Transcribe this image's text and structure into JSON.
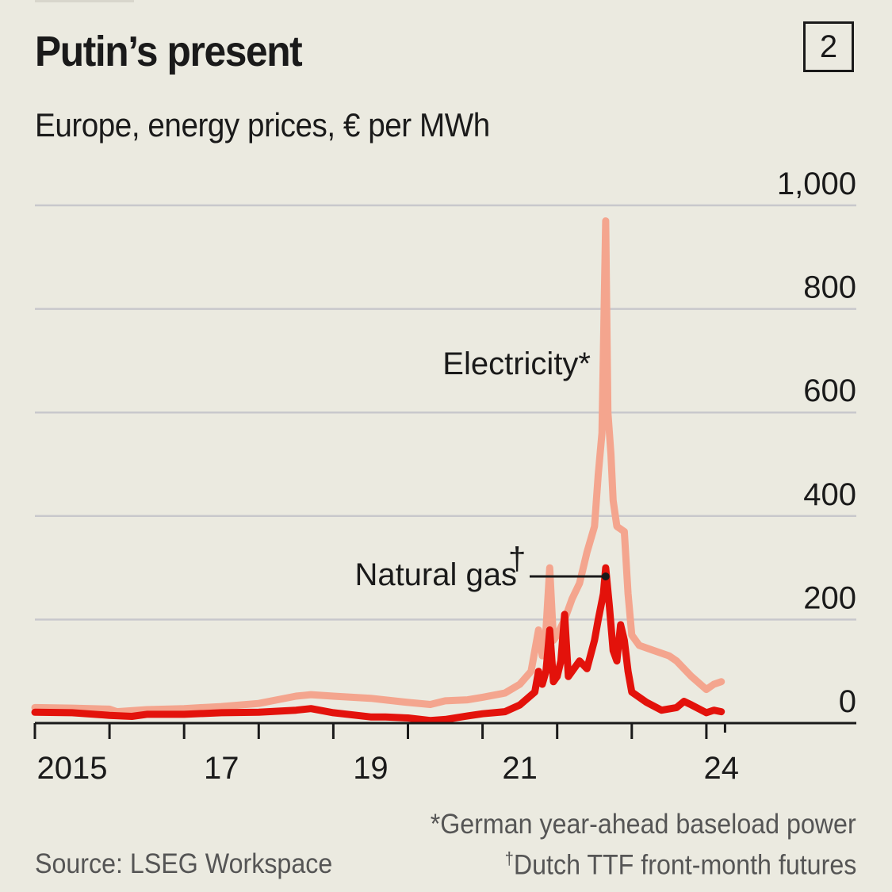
{
  "header": {
    "title": "Putin’s present",
    "subtitle": "Europe, energy prices, € per MWh",
    "chart_number": "2"
  },
  "footer": {
    "source": "Source: LSEG Workspace",
    "note_electricity_mark": "*",
    "note_electricity": "German year-ahead baseload power",
    "note_gas_mark": "†",
    "note_gas": "Dutch TTF front-month futures"
  },
  "chart_data": {
    "type": "line",
    "title": "Putin’s present",
    "subtitle": "Europe, energy prices, € per MWh",
    "xlabel": "",
    "ylabel": "€ per MWh",
    "ylim": [
      0,
      1000
    ],
    "xlim": [
      2015,
      2026.8
    ],
    "grid": true,
    "y_axis_side": "right",
    "yticks": [
      0,
      200,
      400,
      600,
      800,
      1000
    ],
    "ytick_labels": [
      "0",
      "200",
      "400",
      "600",
      "800",
      "1,000"
    ],
    "xticks": [
      2015,
      2016,
      2017,
      2018,
      2019,
      2020,
      2021,
      2022,
      2023,
      2024
    ],
    "xtick_labels": [
      {
        "label": "2015",
        "at": 2015.5
      },
      {
        "label": "17",
        "at": 2017.5
      },
      {
        "label": "19",
        "at": 2019.5
      },
      {
        "label": "21",
        "at": 2021.5
      },
      {
        "label": "24",
        "at": 2024.2
      }
    ],
    "colors": {
      "electricity": "#f4a58e",
      "gas": "#e3120b",
      "grid": "#c8c8cc",
      "axis": "#1a1a1a"
    },
    "annotations": [
      {
        "series": "electricity",
        "text": "Electricity",
        "mark": "*"
      },
      {
        "series": "gas",
        "text": "Natural gas",
        "mark": "†",
        "pointer_at": [
          2022.65,
          280
        ]
      }
    ],
    "series": [
      {
        "name": "Electricity",
        "x": [
          2015.0,
          2015.5,
          2016.0,
          2016.1,
          2016.5,
          2017.0,
          2017.5,
          2018.0,
          2018.5,
          2018.7,
          2019.0,
          2019.5,
          2020.0,
          2020.3,
          2020.5,
          2020.8,
          2021.0,
          2021.3,
          2021.5,
          2021.65,
          2021.75,
          2021.8,
          2021.85,
          2021.9,
          2021.95,
          2022.0,
          2022.1,
          2022.2,
          2022.3,
          2022.4,
          2022.5,
          2022.55,
          2022.6,
          2022.65,
          2022.68,
          2022.72,
          2022.75,
          2022.8,
          2022.9,
          2022.95,
          2023.0,
          2023.1,
          2023.3,
          2023.5,
          2023.6,
          2023.8,
          2024.0,
          2024.1,
          2024.2
        ],
        "values": [
          30,
          29,
          27,
          22,
          26,
          28,
          32,
          38,
          52,
          55,
          52,
          48,
          40,
          36,
          43,
          45,
          50,
          58,
          75,
          100,
          180,
          130,
          180,
          300,
          160,
          170,
          200,
          240,
          270,
          330,
          380,
          480,
          560,
          970,
          600,
          520,
          430,
          380,
          370,
          250,
          170,
          150,
          140,
          130,
          120,
          90,
          65,
          75,
          80
        ]
      },
      {
        "name": "Natural gas",
        "x": [
          2015.0,
          2015.5,
          2016.0,
          2016.3,
          2016.5,
          2017.0,
          2017.5,
          2018.0,
          2018.5,
          2018.7,
          2019.0,
          2019.5,
          2019.7,
          2020.0,
          2020.3,
          2020.5,
          2020.8,
          2021.0,
          2021.3,
          2021.5,
          2021.7,
          2021.75,
          2021.8,
          2021.85,
          2021.9,
          2021.95,
          2022.0,
          2022.05,
          2022.1,
          2022.15,
          2022.2,
          2022.3,
          2022.4,
          2022.5,
          2022.55,
          2022.62,
          2022.65,
          2022.7,
          2022.75,
          2022.8,
          2022.85,
          2022.9,
          2022.95,
          2023.0,
          2023.2,
          2023.4,
          2023.6,
          2023.7,
          2023.8,
          2024.0,
          2024.1,
          2024.2
        ],
        "values": [
          21,
          20,
          15,
          13,
          17,
          17,
          20,
          21,
          25,
          28,
          20,
          12,
          12,
          10,
          5,
          7,
          14,
          18,
          22,
          35,
          60,
          100,
          75,
          100,
          180,
          80,
          90,
          120,
          210,
          90,
          100,
          120,
          105,
          160,
          200,
          250,
          300,
          225,
          140,
          120,
          190,
          160,
          100,
          60,
          40,
          25,
          30,
          42,
          35,
          20,
          25,
          22
        ]
      }
    ]
  }
}
